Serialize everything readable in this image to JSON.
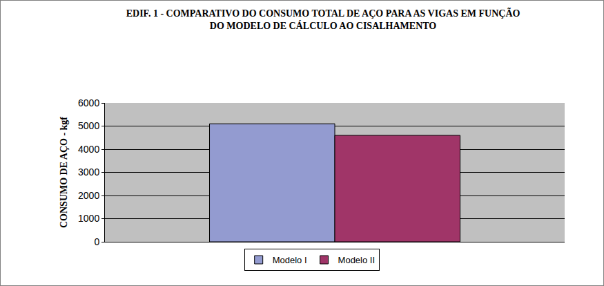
{
  "chart_data": {
    "type": "bar",
    "title": "EDIF. 1 - COMPARATIVO DO CONSUMO TOTAL DE AÇO PARA AS VIGAS EM FUNÇÃO\nDO MODELO DE CÁLCULO AO CISALHAMENTO",
    "y_label": "CONSUMO DE AÇO - kgf",
    "categories": [
      null
    ],
    "series": [
      {
        "name": "Modelo I",
        "color": "#939bd0",
        "values": [
          5100
        ]
      },
      {
        "name": "Modelo II",
        "color": "#a03568",
        "values": [
          4600
        ]
      }
    ],
    "ylim": [
      0,
      6000
    ],
    "yticks": [
      0,
      1000,
      2000,
      3000,
      4000,
      5000,
      6000
    ],
    "grid": true,
    "legend": "bottom",
    "tick_labels": "y"
  }
}
